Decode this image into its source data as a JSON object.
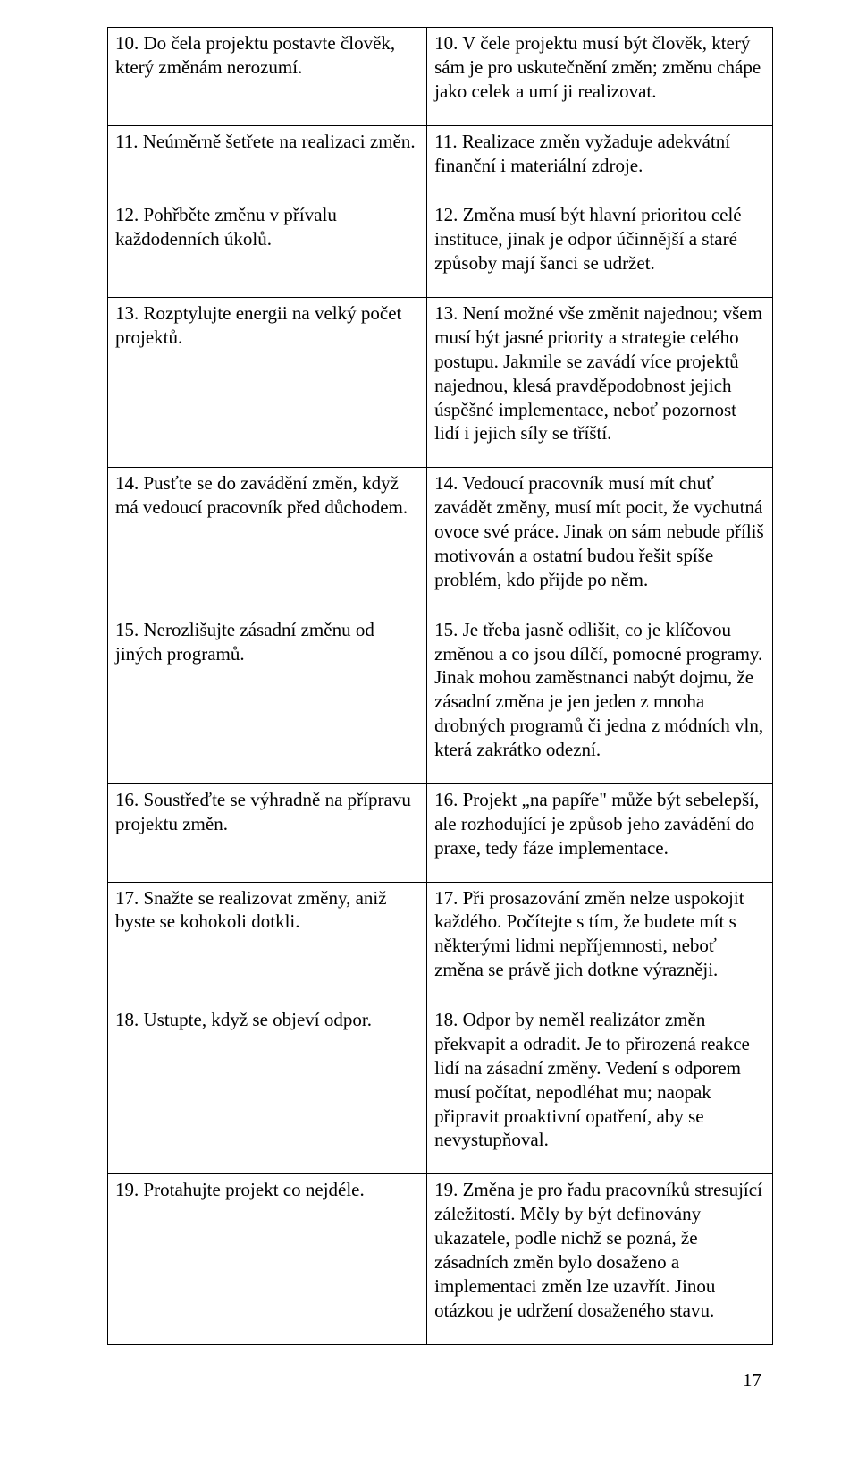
{
  "table": {
    "border_color": "#000000",
    "font_family": "Times New Roman",
    "font_size_pt": 16,
    "text_color": "#000000",
    "background_color": "#ffffff",
    "columns": {
      "left_width_pct": 48,
      "right_width_pct": 52
    },
    "rows": [
      {
        "left": "10. Do čela projektu postavte člověk, který změnám nerozumí.",
        "right": "10. V čele projektu musí být člověk, který sám je pro uskutečnění změn; změnu chápe jako celek a umí ji realizovat."
      },
      {
        "left": "11. Neúměrně šetřete na realizaci změn.",
        "right": "11. Realizace změn vyžaduje adekvátní finanční i materiální zdroje."
      },
      {
        "left": "12. Pohřběte změnu v přívalu každodenních úkolů.",
        "right": "12. Změna musí být hlavní prioritou celé instituce, jinak je odpor účinnější a staré způsoby mají šanci se udržet."
      },
      {
        "left": "13. Rozptylujte energii na velký počet projektů.",
        "right": "13. Není možné vše změnit najednou; všem musí být jasné priority a strategie celého postupu. Jakmile se zavádí více projektů najednou, klesá pravděpodobnost jejich úspěšné implementace, neboť pozornost lidí i jejich síly se tříští."
      },
      {
        "left": "14. Pusťte se do zavádění změn, když má vedoucí pracovník před důchodem.",
        "right": "14. Vedoucí pracovník musí mít chuť zavádět změny, musí mít pocit, že vychutná ovoce své práce. Jinak on sám nebude příliš motivován a ostatní budou řešit spíše problém, kdo přijde po něm."
      },
      {
        "left": "15. Nerozlišujte zásadní změnu od jiných programů.",
        "right": "15. Je třeba jasně odlišit, co je klíčovou změnou a co jsou dílčí, pomocné programy. Jinak mohou zaměstnanci nabýt dojmu, že zásadní změna je jen jeden z mnoha drobných programů či jedna z módních vln, která zakrátko odezní."
      },
      {
        "left": "16. Soustřeďte se výhradně na přípravu projektu změn.",
        "right": "16. Projekt „na papíře\" může být sebelepší, ale rozhodující je způsob jeho zavádění do praxe, tedy fáze implementace."
      },
      {
        "left": "17. Snažte se realizovat změny, aniž byste se kohokoli dotkli.",
        "right": "17. Při prosazování změn nelze uspokojit každého. Počítejte s tím, že budete mít s některými lidmi nepříjemnosti, neboť změna se právě jich dotkne výrazněji."
      },
      {
        "left": "18. Ustupte, když se objeví odpor.",
        "right": "18. Odpor by neměl realizátor změn překvapit a odradit. Je to přirozená reakce lidí na zásadní změny. Vedení s odporem musí počítat, nepodléhat mu;  naopak připravit proaktivní opatření, aby se nevystupňoval."
      },
      {
        "left": "19. Protahujte projekt co nejdéle.",
        "right": "19. Změna je pro řadu pracovníků stresující záležitostí. Měly by být definovány ukazatele, podle nichž se pozná, že zásadních změn bylo dosaženo a implementaci změn lze uzavřít. Jinou otázkou je udržení dosaženého stavu."
      }
    ]
  },
  "page_number": "17"
}
